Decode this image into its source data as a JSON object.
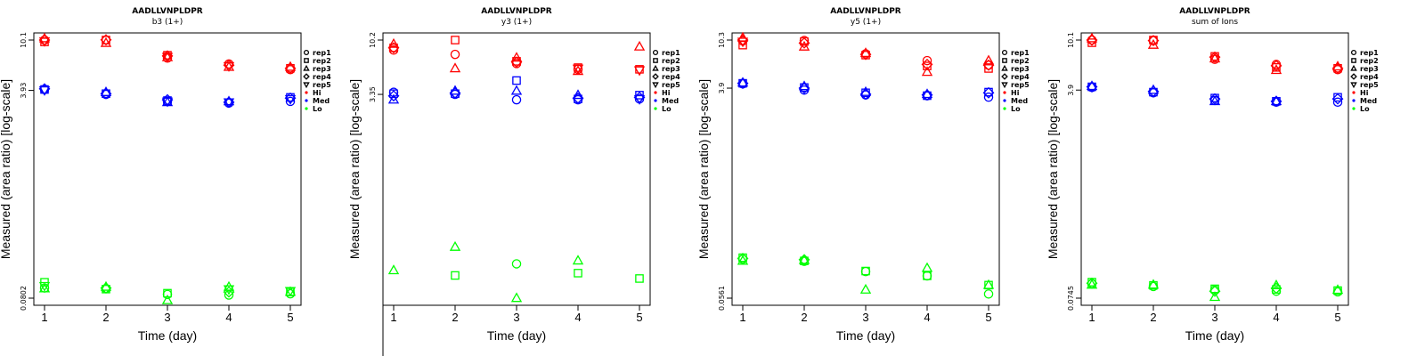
{
  "colors": {
    "Hi": "#ff0000",
    "Med": "#0000ff",
    "Lo": "#00ff00"
  },
  "chart_data": [
    {
      "type": "scatter",
      "title": "AADLLVNPLDPR",
      "subtitle": "b3 (1+)",
      "xlabel": "Time (day)",
      "ylabel": "Measured (area ratio) [log-scale]",
      "x_ticks": [
        "1",
        "2",
        "3",
        "4",
        "5"
      ],
      "y_scale": "log",
      "y_ticks": [
        10.1,
        3.93,
        0.0802
      ],
      "y_tick_labels": [
        "10.1",
        "3.93",
        "0.0802"
      ],
      "ylim": [
        0.0802,
        10.1
      ],
      "legend": {
        "position": "right",
        "entries": [
          "rep1",
          "rep2",
          "rep3",
          "rep4",
          "rep5",
          "Hi",
          "Med",
          "Lo"
        ]
      },
      "series": [
        {
          "level": "Hi",
          "rep": "rep1",
          "values": [
            10.1,
            null,
            7.2,
            6.45,
            5.8
          ]
        },
        {
          "level": "Hi",
          "rep": "rep2",
          "values": [
            9.75,
            10.1,
            7.6,
            null,
            5.95
          ]
        },
        {
          "level": "Hi",
          "rep": "rep3",
          "values": [
            10.4,
            9.55,
            7.3,
            6.1,
            6.1
          ]
        },
        {
          "level": "Hi",
          "rep": "rep4",
          "values": [
            10.1,
            10.15,
            7.5,
            6.3,
            5.95
          ]
        },
        {
          "level": "Hi",
          "rep": "rep5",
          "values": [
            9.9,
            null,
            7.4,
            6.2,
            null
          ]
        },
        {
          "level": "Med",
          "rep": "rep1",
          "values": [
            4.0,
            3.65,
            3.2,
            3.1,
            3.2
          ]
        },
        {
          "level": "Med",
          "rep": "rep2",
          "values": [
            4.0,
            3.7,
            3.25,
            null,
            3.45
          ]
        },
        {
          "level": "Med",
          "rep": "rep3",
          "values": [
            null,
            3.8,
            3.15,
            3.2,
            null
          ]
        },
        {
          "level": "Med",
          "rep": "rep4",
          "values": [
            4.05,
            3.7,
            3.3,
            3.15,
            3.4
          ]
        },
        {
          "level": "Med",
          "rep": "rep5",
          "values": [
            3.95,
            null,
            3.2,
            3.15,
            3.35
          ]
        },
        {
          "level": "Lo",
          "rep": "rep1",
          "values": [
            0.097,
            0.096,
            0.086,
            0.085,
            0.087
          ]
        },
        {
          "level": "Lo",
          "rep": "rep2",
          "values": [
            0.108,
            0.095,
            0.088,
            null,
            0.09
          ]
        },
        {
          "level": "Lo",
          "rep": "rep3",
          "values": [
            0.096,
            0.099,
            0.077,
            0.099,
            0.09
          ]
        },
        {
          "level": "Lo",
          "rep": "rep4",
          "values": [
            null,
            0.097,
            null,
            0.09,
            null
          ]
        },
        {
          "level": "Lo",
          "rep": "rep5",
          "values": [
            0.101,
            null,
            null,
            0.095,
            0.092
          ]
        }
      ]
    },
    {
      "type": "scatter",
      "title": "AADLLVNPLDPR",
      "subtitle": "y3 (1+)",
      "xlabel": "Time (day)",
      "ylabel": "Measured (area ratio) [log-scale]",
      "x_ticks": [
        "1",
        "2",
        "3",
        "4",
        "5"
      ],
      "y_scale": "log",
      "y_ticks": [
        10.2,
        3.35
      ],
      "y_tick_labels": [
        "10.2",
        "3.35"
      ],
      "ylim": [
        0.0515,
        10.2
      ],
      "legend": {
        "position": "right",
        "entries": [
          "rep1",
          "rep2",
          "rep3",
          "rep4",
          "rep5",
          "Hi",
          "Med",
          "Lo"
        ]
      },
      "series": [
        {
          "level": "Hi",
          "rep": "rep1",
          "values": [
            8.3,
            7.6,
            6.3,
            5.6,
            null
          ]
        },
        {
          "level": "Hi",
          "rep": "rep2",
          "values": [
            8.7,
            10.2,
            6.6,
            5.8,
            5.6
          ]
        },
        {
          "level": "Hi",
          "rep": "rep3",
          "values": [
            9.4,
            5.7,
            7.1,
            5.4,
            8.9
          ]
        },
        {
          "level": "Hi",
          "rep": "rep4",
          "values": [
            8.7,
            null,
            6.5,
            null,
            null
          ]
        },
        {
          "level": "Hi",
          "rep": "rep5",
          "values": [
            null,
            null,
            null,
            5.7,
            5.5
          ]
        },
        {
          "level": "Med",
          "rep": "rep1",
          "values": [
            3.5,
            3.35,
            3.0,
            3.0,
            3.05
          ]
        },
        {
          "level": "Med",
          "rep": "rep2",
          "values": [
            3.4,
            3.4,
            4.45,
            3.05,
            3.3
          ]
        },
        {
          "level": "Med",
          "rep": "rep3",
          "values": [
            3.0,
            3.6,
            3.6,
            3.3,
            null
          ]
        },
        {
          "level": "Med",
          "rep": "rep4",
          "values": [
            3.25,
            3.45,
            null,
            3.1,
            3.15
          ]
        },
        {
          "level": "Med",
          "rep": "rep5",
          "values": [
            null,
            null,
            null,
            null,
            3.05
          ]
        },
        {
          "level": "Lo",
          "rep": "rep1",
          "values": [
            null,
            null,
            0.104,
            null,
            null
          ]
        },
        {
          "level": "Lo",
          "rep": "rep2",
          "values": [
            null,
            0.082,
            null,
            0.086,
            0.077
          ]
        },
        {
          "level": "Lo",
          "rep": "rep3",
          "values": [
            0.091,
            0.147,
            0.0515,
            0.111,
            null
          ]
        }
      ]
    },
    {
      "type": "scatter",
      "title": "AADLLVNPLDPR",
      "subtitle": "y5 (1+)",
      "xlabel": "Time (day)",
      "ylabel": "Measured (area ratio) [log-scale]",
      "x_ticks": [
        "1",
        "2",
        "3",
        "4",
        "5"
      ],
      "y_scale": "log",
      "y_ticks": [
        10.3,
        3.9,
        0.0561
      ],
      "y_tick_labels": [
        "10.3",
        "3.9",
        "0.0561"
      ],
      "ylim": [
        0.0561,
        10.3
      ],
      "legend": {
        "position": "right",
        "entries": [
          "rep1",
          "rep2",
          "rep3",
          "rep4",
          "rep5",
          "Hi",
          "Med",
          "Lo"
        ]
      },
      "series": [
        {
          "level": "Hi",
          "rep": "rep1",
          "values": [
            10.1,
            10.2,
            7.8,
            6.8,
            6.2
          ]
        },
        {
          "level": "Hi",
          "rep": "rep2",
          "values": [
            9.3,
            10.0,
            7.6,
            6.1,
            5.8
          ]
        },
        {
          "level": "Hi",
          "rep": "rep3",
          "values": [
            10.8,
            9.0,
            7.9,
            5.4,
            6.8
          ]
        },
        {
          "level": "Hi",
          "rep": "rep4",
          "values": [
            10.3,
            9.7,
            7.7,
            6.3,
            6.2
          ]
        },
        {
          "level": "Hi",
          "rep": "rep5",
          "values": [
            10.0,
            null,
            null,
            null,
            null
          ]
        },
        {
          "level": "Med",
          "rep": "rep1",
          "values": [
            4.25,
            3.75,
            3.4,
            3.35,
            3.25
          ]
        },
        {
          "level": "Med",
          "rep": "rep2",
          "values": [
            4.3,
            3.95,
            3.55,
            3.35,
            3.6
          ]
        },
        {
          "level": "Med",
          "rep": "rep3",
          "values": [
            4.35,
            4.05,
            3.6,
            3.45,
            null
          ]
        },
        {
          "level": "Med",
          "rep": "rep4",
          "values": [
            4.3,
            3.9,
            3.45,
            3.4,
            3.55
          ]
        },
        {
          "level": "Lo",
          "rep": "rep1",
          "values": [
            0.123,
            0.118,
            0.096,
            0.088,
            0.061
          ]
        },
        {
          "level": "Lo",
          "rep": "rep2",
          "values": [
            0.127,
            0.119,
            0.097,
            0.088,
            0.073
          ]
        },
        {
          "level": "Lo",
          "rep": "rep3",
          "values": [
            0.119,
            0.121,
            0.0665,
            0.103,
            0.073
          ]
        },
        {
          "level": "Lo",
          "rep": "rep4",
          "values": [
            0.125,
            0.122,
            null,
            null,
            null
          ]
        }
      ]
    },
    {
      "type": "scatter",
      "title": "AADLLVNPLDPR",
      "subtitle": "sum of Ions",
      "xlabel": "Time (day)",
      "ylabel": "Measured (area ratio) [log-scale]",
      "x_ticks": [
        "1",
        "2",
        "3",
        "4",
        "5"
      ],
      "y_scale": "log",
      "y_ticks": [
        10.1,
        3.9,
        0.0745
      ],
      "y_tick_labels": [
        "10.1",
        "3.9",
        "0.0745"
      ],
      "ylim": [
        0.0745,
        10.1
      ],
      "legend": {
        "position": "right",
        "entries": [
          "rep1",
          "rep2",
          "rep3",
          "rep4",
          "rep5",
          "Hi",
          "Med",
          "Lo"
        ]
      },
      "series": [
        {
          "level": "Hi",
          "rep": "rep1",
          "values": [
            10.1,
            10.0,
            7.0,
            6.35,
            5.75
          ]
        },
        {
          "level": "Hi",
          "rep": "rep2",
          "values": [
            9.6,
            10.1,
            7.4,
            6.0,
            5.9
          ]
        },
        {
          "level": "Hi",
          "rep": "rep3",
          "values": [
            10.4,
            9.2,
            7.1,
            5.7,
            6.1
          ]
        },
        {
          "level": "Hi",
          "rep": "rep4",
          "values": [
            10.1,
            10.0,
            7.3,
            6.2,
            5.9
          ]
        },
        {
          "level": "Med",
          "rep": "rep1",
          "values": [
            4.1,
            3.7,
            3.2,
            3.1,
            3.1
          ]
        },
        {
          "level": "Med",
          "rep": "rep2",
          "values": [
            4.15,
            3.75,
            3.35,
            3.15,
            3.4
          ]
        },
        {
          "level": "Med",
          "rep": "rep3",
          "values": [
            4.2,
            3.9,
            3.15,
            3.15,
            null
          ]
        },
        {
          "level": "Med",
          "rep": "rep4",
          "values": [
            4.15,
            3.8,
            3.3,
            3.15,
            3.3
          ]
        },
        {
          "level": "Lo",
          "rep": "rep1",
          "values": [
            0.098,
            0.093,
            0.087,
            0.085,
            0.084
          ]
        },
        {
          "level": "Lo",
          "rep": "rep2",
          "values": [
            0.101,
            0.095,
            0.089,
            0.088,
            0.086
          ]
        },
        {
          "level": "Lo",
          "rep": "rep3",
          "values": [
            0.096,
            0.096,
            0.076,
            0.095,
            0.087
          ]
        },
        {
          "level": "Lo",
          "rep": "rep4",
          "values": [
            0.099,
            null,
            0.085,
            0.09,
            null
          ]
        }
      ]
    }
  ]
}
